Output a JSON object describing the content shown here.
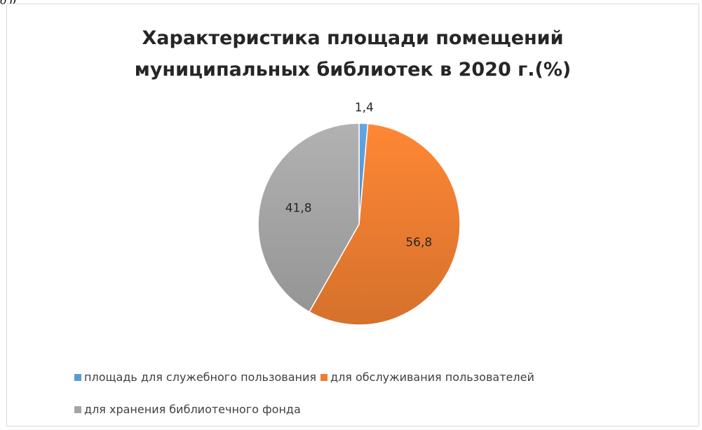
{
  "fragment_text": "д р",
  "chart_data": {
    "type": "pie",
    "title_lines": [
      "Характеристика площади помещений",
      "муниципальных библиотек в 2020 г.(%)"
    ],
    "slices": [
      {
        "name": "площадь для служебного пользования",
        "value": 1.4,
        "label": "1,4",
        "color": "#5b9bd5"
      },
      {
        "name": "для обслуживания пользователей",
        "value": 56.8,
        "label": "56,8",
        "color": "#ed7d31"
      },
      {
        "name": "для хранения библиотечного фонда",
        "value": 41.8,
        "label": "41,8",
        "color": "#a5a5a5"
      }
    ],
    "legend_position": "bottom"
  }
}
